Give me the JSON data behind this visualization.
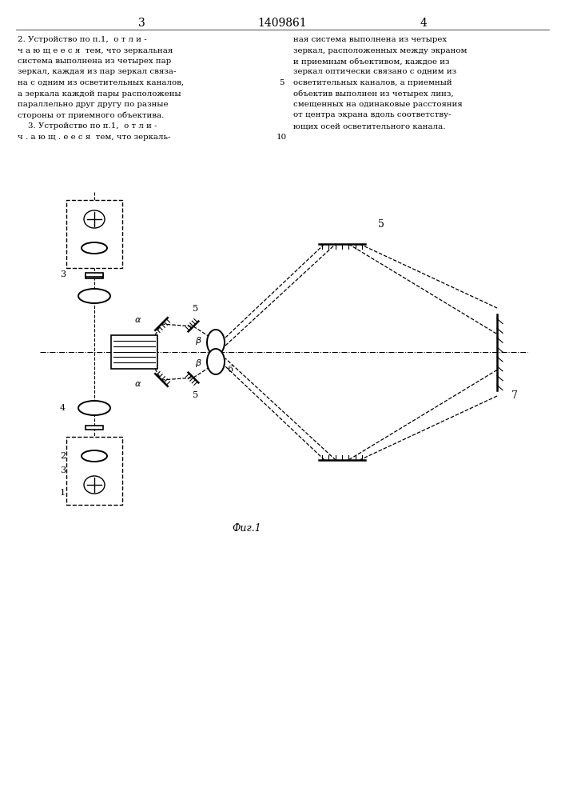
{
  "title": "1409861",
  "page_left": "3",
  "page_right": "4",
  "fig_label": "Фиг.1",
  "background_color": "#ffffff",
  "text_color": "#000000",
  "line_color": "#000000",
  "left_text_line1": "2. Устройство по п.1,  о т л и -",
  "left_text_line2": "ч а ю щ е е с я  тем, что зеркальная",
  "left_text_line3": "система выполнена из четырех пар",
  "left_text_line4": "зеркал, каждая из пар зеркал связа-",
  "left_text_line5": "на с одним из осветительных каналов,",
  "left_text_line6": "а зеркала каждой пары расположены",
  "left_text_line7": "параллельно друг другу по разные",
  "left_text_line8": "стороны от приемного объектива.",
  "left_text_line9": "    3. Устройство по п.1,  о т л и -",
  "left_text_line10": "ч . а ю щ . е е с я  тем, что зеркаль-",
  "right_text_line1": "ная система выполнена из четырех",
  "right_text_line2": "зеркал, расположенных между экраном",
  "right_text_line3": "и приемным объективом, каждое из",
  "right_text_line4": "зеркал оптически связано с одним из",
  "right_text_line5": "осветительных каналов, а приемный",
  "right_text_line6": "объектив выполнен из четырех линз,",
  "right_text_line7": "смещенных на одинаковые расстояния",
  "right_text_line8": "от центра экрана вдоль соответству-",
  "right_text_line9": "ющих осей осветительного канала."
}
